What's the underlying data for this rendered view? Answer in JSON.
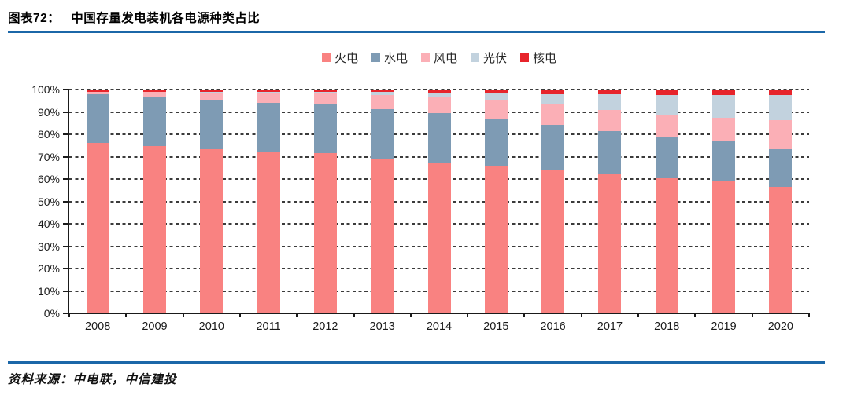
{
  "header": {
    "label": "图表72：",
    "title": "中国存量发电装机各电源种类占比"
  },
  "footer": {
    "source": "资料来源：中电联，中信建投"
  },
  "chart_data": {
    "type": "bar",
    "stacked": true,
    "title": "中国存量发电装机各电源种类占比",
    "categories": [
      "2008",
      "2009",
      "2010",
      "2011",
      "2012",
      "2013",
      "2014",
      "2015",
      "2016",
      "2017",
      "2018",
      "2019",
      "2020"
    ],
    "series": [
      {
        "key": "thermal",
        "name": "火电",
        "color": "#F98281",
        "values": [
          76.0,
          74.6,
          73.4,
          72.3,
          71.5,
          69.1,
          67.3,
          65.8,
          64.0,
          62.2,
          60.2,
          59.2,
          56.6
        ]
      },
      {
        "key": "hydro",
        "name": "水电",
        "color": "#7E9BB4",
        "values": [
          21.8,
          22.4,
          22.2,
          21.9,
          21.7,
          22.3,
          22.2,
          21.0,
          20.2,
          19.3,
          18.5,
          17.7,
          16.8
        ]
      },
      {
        "key": "wind",
        "name": "风电",
        "color": "#FBAFB6",
        "values": [
          1.1,
          2.0,
          3.2,
          4.4,
          5.4,
          6.1,
          7.0,
          8.6,
          9.0,
          9.3,
          9.7,
          10.4,
          12.8
        ]
      },
      {
        "key": "solar",
        "name": "光伏",
        "color": "#C2D2DE",
        "values": [
          0.0,
          0.0,
          0.1,
          0.2,
          0.3,
          1.3,
          2.0,
          2.9,
          4.7,
          7.2,
          9.2,
          10.3,
          11.5
        ]
      },
      {
        "key": "nuclear",
        "name": "核电",
        "color": "#E7242B",
        "values": [
          1.1,
          1.0,
          1.1,
          1.2,
          1.1,
          1.2,
          1.5,
          1.7,
          2.1,
          2.0,
          2.4,
          2.4,
          2.3
        ]
      }
    ],
    "ylim": [
      0,
      100
    ],
    "ytick_step": 10,
    "ytick_labels": [
      "0%",
      "10%",
      "20%",
      "30%",
      "40%",
      "50%",
      "60%",
      "70%",
      "80%",
      "90%",
      "100%"
    ],
    "grid": "dashed-horizontal",
    "legend_position": "top",
    "axis_color": "#1a1a1a",
    "grid_color": "#3b3b3b",
    "rule_color": "#1B67A8"
  }
}
